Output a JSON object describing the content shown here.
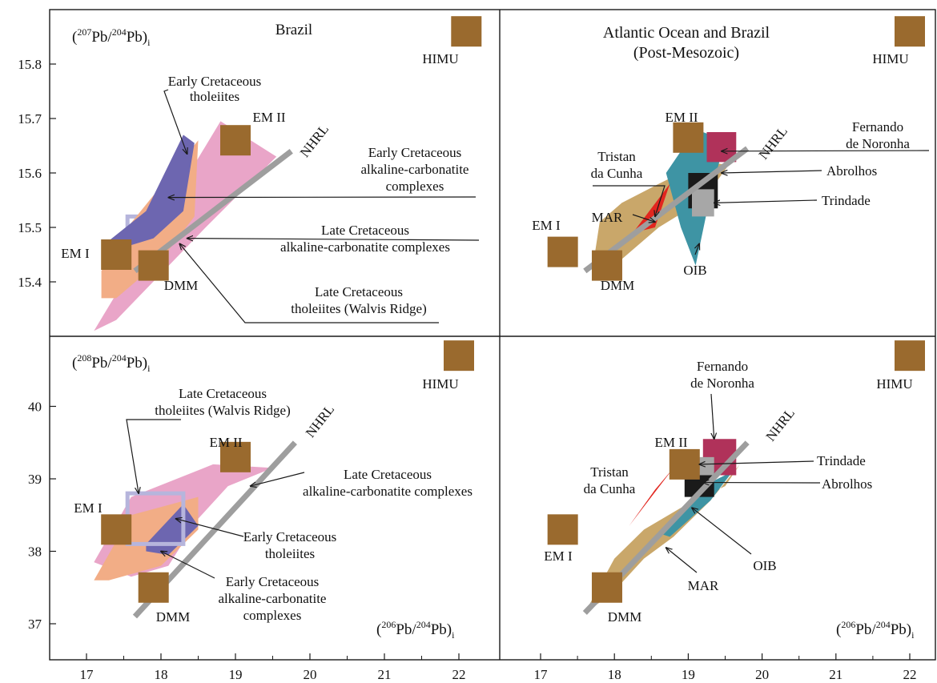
{
  "colors": {
    "frame": "#1a1a1a",
    "tick": "#1a1a1a",
    "nhrl": "#9e9e9e",
    "reservoir": "#9a6a2e",
    "pink": "#e9a5c8",
    "salmon": "#f2ad86",
    "purple": "#6d66b0",
    "lavender": "#b6b5dc",
    "tan": "#c9a76a",
    "teal": "#3e94a4",
    "red": "#e2261f",
    "magenta": "#b0325a",
    "black": "#1a1a1a",
    "gray_box": "#a7a7a7"
  },
  "chart_data": [
    {
      "type": "scatter",
      "panel": "top-left",
      "title": "Brazil",
      "ylabel": "(207Pb/204Pb)i",
      "xlabel": "",
      "xlim": [
        16.6,
        22.8
      ],
      "ylim": [
        15.3,
        15.9
      ],
      "yticks": [
        15.4,
        15.5,
        15.6,
        15.7,
        15.8
      ],
      "reservoirs": [
        {
          "name": "HIMU",
          "x": 22.1,
          "y": 15.86
        },
        {
          "name": "EM II",
          "x": 19.0,
          "y": 15.66
        },
        {
          "name": "EM I",
          "x": 17.4,
          "y": 15.45
        },
        {
          "name": "DMM",
          "x": 17.9,
          "y": 15.43
        }
      ],
      "nhrl": [
        [
          17.65,
          15.42
        ],
        [
          19.75,
          15.64
        ]
      ],
      "fields": [
        {
          "name": "Late Cretaceous tholeiites (Walvis Ridge)",
          "style": "lavender-box",
          "points": [
            [
              17.55,
              15.475
            ],
            [
              18.3,
              15.475
            ],
            [
              18.3,
              15.52
            ],
            [
              17.55,
              15.52
            ]
          ]
        },
        {
          "name": "Late Cretaceous alkaline-carbonatite complexes",
          "style": "pink",
          "points": [
            [
              17.1,
              15.31
            ],
            [
              18.8,
              15.695
            ],
            [
              19.55,
              15.63
            ],
            [
              18.6,
              15.5
            ],
            [
              17.4,
              15.33
            ]
          ]
        },
        {
          "name": "Early Cretaceous alkaline-carbonatite complexes",
          "style": "salmon",
          "points": [
            [
              17.2,
              15.37
            ],
            [
              17.2,
              15.42
            ],
            [
              17.55,
              15.5
            ],
            [
              18.5,
              15.66
            ],
            [
              18.45,
              15.52
            ],
            [
              18.0,
              15.44
            ],
            [
              17.4,
              15.37
            ]
          ]
        },
        {
          "name": "Early Cretaceous tholeiites",
          "style": "purple",
          "points": [
            [
              17.25,
              15.47
            ],
            [
              17.8,
              15.53
            ],
            [
              18.3,
              15.67
            ],
            [
              18.45,
              15.655
            ],
            [
              18.3,
              15.53
            ],
            [
              17.9,
              15.48
            ],
            [
              17.3,
              15.455
            ]
          ]
        }
      ],
      "labels": [
        {
          "name": "Early Cretaceous tholeiites",
          "tip": [
            18.35,
            15.635
          ]
        },
        {
          "name": "Early Cretaceous alkaline-carbonatite complexes",
          "tip": [
            18.1,
            15.555
          ]
        },
        {
          "name": "Late Cretaceous alkaline-carbonatite complexes",
          "tip": [
            18.35,
            15.48
          ]
        },
        {
          "name": "Late Cretaceous tholeiites (Walvis Ridge)",
          "tip": [
            18.25,
            15.47
          ]
        }
      ]
    },
    {
      "type": "scatter",
      "panel": "top-right",
      "title": "Atlantic Ocean and Brazil (Post-Mesozoic)",
      "ylabel": "",
      "xlabel": "",
      "xlim": [
        16.6,
        22.8
      ],
      "ylim": [
        15.3,
        15.9
      ],
      "reservoirs": [
        {
          "name": "HIMU",
          "x": 22.0,
          "y": 15.86
        },
        {
          "name": "EM II",
          "x": 19.0,
          "y": 15.665
        },
        {
          "name": "EM I",
          "x": 17.3,
          "y": 15.455
        },
        {
          "name": "DMM",
          "x": 17.9,
          "y": 15.43
        }
      ],
      "nhrl": [
        [
          17.6,
          15.42
        ],
        [
          19.8,
          15.645
        ]
      ],
      "fields": [
        {
          "name": "MAR",
          "style": "tan",
          "points": [
            [
              17.7,
              15.42
            ],
            [
              17.8,
              15.51
            ],
            [
              18.1,
              15.545
            ],
            [
              18.6,
              15.58
            ],
            [
              19.2,
              15.62
            ],
            [
              19.55,
              15.615
            ],
            [
              19.2,
              15.55
            ],
            [
              18.6,
              15.5
            ],
            [
              18.0,
              15.43
            ]
          ]
        },
        {
          "name": "OIB",
          "style": "teal",
          "points": [
            [
              18.7,
              15.6
            ],
            [
              19.1,
              15.68
            ],
            [
              19.5,
              15.66
            ],
            [
              19.3,
              15.56
            ],
            [
              19.1,
              15.43
            ],
            [
              18.9,
              15.5
            ]
          ]
        },
        {
          "name": "Tristan da Cunha",
          "style": "red",
          "points": [
            [
              18.25,
              15.49
            ],
            [
              18.75,
              15.58
            ],
            [
              18.55,
              15.5
            ]
          ]
        },
        {
          "name": "Fernando de Noronha",
          "style": "magenta",
          "points": [
            [
              19.25,
              15.62
            ],
            [
              19.65,
              15.62
            ],
            [
              19.65,
              15.675
            ],
            [
              19.25,
              15.675
            ]
          ]
        },
        {
          "name": "Abrolhos",
          "style": "black",
          "points": [
            [
              19.0,
              15.535
            ],
            [
              19.4,
              15.535
            ],
            [
              19.4,
              15.6
            ],
            [
              19.0,
              15.6
            ]
          ]
        },
        {
          "name": "Trindade",
          "style": "gray-box",
          "points": [
            [
              19.05,
              15.52
            ],
            [
              19.35,
              15.52
            ],
            [
              19.35,
              15.57
            ],
            [
              19.05,
              15.57
            ]
          ]
        }
      ],
      "labels": [
        {
          "name": "Fernando de Noronha",
          "tip": [
            19.45,
            15.64
          ]
        },
        {
          "name": "Abrolhos",
          "tip": [
            19.45,
            15.6
          ]
        },
        {
          "name": "Trindade",
          "tip": [
            19.35,
            15.545
          ]
        },
        {
          "name": "Tristan da Cunha",
          "tip": [
            18.55,
            15.52
          ]
        },
        {
          "name": "MAR",
          "tip": [
            18.55,
            15.51
          ]
        },
        {
          "name": "OIB",
          "tip": [
            19.15,
            15.47
          ]
        }
      ]
    },
    {
      "type": "scatter",
      "panel": "bottom-left",
      "title": "",
      "ylabel": "(208Pb/204Pb)i",
      "xlabel": "(206Pb/204Pb)i",
      "xlim": [
        16.6,
        22.8
      ],
      "ylim": [
        36.6,
        40.5
      ],
      "xticks": [
        17,
        18,
        19,
        20,
        21,
        22
      ],
      "yticks": [
        37,
        38,
        39,
        40
      ],
      "reservoirs": [
        {
          "name": "HIMU",
          "x": 22.0,
          "y": 40.7
        },
        {
          "name": "EM II",
          "x": 19.0,
          "y": 39.3
        },
        {
          "name": "EM I",
          "x": 17.4,
          "y": 38.3
        },
        {
          "name": "DMM",
          "x": 17.9,
          "y": 37.5
        }
      ],
      "nhrl": [
        [
          17.65,
          37.1
        ],
        [
          19.8,
          39.5
        ]
      ],
      "fields": [
        {
          "name": "Late Cretaceous alkaline-carbonatite complexes",
          "style": "pink",
          "points": [
            [
              17.1,
              37.85
            ],
            [
              17.6,
              38.75
            ],
            [
              18.7,
              39.2
            ],
            [
              19.5,
              39.15
            ],
            [
              18.9,
              38.9
            ],
            [
              18.5,
              38.45
            ],
            [
              18.1,
              37.8
            ],
            [
              17.6,
              37.65
            ]
          ]
        },
        {
          "name": "Early Cretaceous alkaline-carbonatite complexes",
          "style": "salmon",
          "points": [
            [
              17.1,
              37.6
            ],
            [
              17.6,
              38.5
            ],
            [
              18.5,
              38.75
            ],
            [
              18.5,
              38.3
            ],
            [
              18.0,
              37.8
            ],
            [
              17.3,
              37.6
            ]
          ]
        },
        {
          "name": "Early Cretaceous tholeiites",
          "style": "purple",
          "points": [
            [
              17.8,
              38.1
            ],
            [
              18.3,
              38.65
            ],
            [
              18.5,
              38.35
            ],
            [
              18.1,
              37.95
            ],
            [
              17.8,
              38.0
            ]
          ]
        },
        {
          "name": "Late Cretaceous tholeiites (Walvis Ridge)",
          "style": "lavender-box",
          "points": [
            [
              17.55,
              38.1
            ],
            [
              18.3,
              38.1
            ],
            [
              18.3,
              38.8
            ],
            [
              17.55,
              38.8
            ]
          ]
        }
      ],
      "labels": [
        {
          "name": "Late Cretaceous tholeiites (Walvis Ridge)",
          "tip": [
            17.7,
            38.8
          ]
        },
        {
          "name": "Late Cretaceous alkaline-carbonatite complexes",
          "tip": [
            19.2,
            38.9
          ]
        },
        {
          "name": "Early Cretaceous tholeiites",
          "tip": [
            18.2,
            38.45
          ]
        },
        {
          "name": "Early Cretaceous alkaline-carbonatite complexes",
          "tip": [
            18.0,
            38.0
          ]
        }
      ]
    },
    {
      "type": "scatter",
      "panel": "bottom-right",
      "title": "",
      "ylabel": "",
      "xlabel": "(206Pb/204Pb)i",
      "xlim": [
        16.6,
        22.8
      ],
      "ylim": [
        36.6,
        40.5
      ],
      "xticks": [
        17,
        18,
        19,
        20,
        21,
        22
      ],
      "reservoirs": [
        {
          "name": "HIMU",
          "x": 22.0,
          "y": 40.7
        },
        {
          "name": "EM II",
          "x": 18.95,
          "y": 39.2
        },
        {
          "name": "EM I",
          "x": 17.3,
          "y": 38.3
        },
        {
          "name": "DMM",
          "x": 17.9,
          "y": 37.5
        }
      ],
      "nhrl": [
        [
          17.6,
          37.15
        ],
        [
          19.8,
          39.5
        ]
      ],
      "fields": [
        {
          "name": "MAR",
          "style": "tan",
          "points": [
            [
              17.6,
              37.15
            ],
            [
              18.0,
              37.9
            ],
            [
              18.4,
              38.3
            ],
            [
              18.9,
              38.6
            ],
            [
              19.5,
              38.9
            ],
            [
              19.7,
              39.2
            ],
            [
              19.3,
              38.7
            ],
            [
              18.8,
              38.2
            ],
            [
              18.4,
              37.9
            ],
            [
              17.95,
              37.4
            ]
          ]
        },
        {
          "name": "OIB",
          "style": "teal",
          "points": [
            [
              18.6,
              38.25
            ],
            [
              19.2,
              38.9
            ],
            [
              19.6,
              39.1
            ],
            [
              19.3,
              38.7
            ],
            [
              18.75,
              38.2
            ]
          ]
        },
        {
          "name": "Tristan da Cunha",
          "style": "red",
          "points": [
            [
              18.2,
              38.35
            ],
            [
              18.8,
              39.15
            ],
            [
              18.55,
              38.85
            ]
          ]
        },
        {
          "name": "Fernando de Noronha",
          "style": "magenta",
          "points": [
            [
              19.2,
              39.05
            ],
            [
              19.65,
              39.05
            ],
            [
              19.65,
              39.55
            ],
            [
              19.2,
              39.55
            ]
          ]
        },
        {
          "name": "Abrolhos",
          "style": "black",
          "points": [
            [
              18.95,
              38.75
            ],
            [
              19.35,
              38.75
            ],
            [
              19.35,
              39.1
            ],
            [
              18.95,
              39.1
            ]
          ]
        },
        {
          "name": "Trindade",
          "style": "gray-box",
          "points": [
            [
              19.0,
              39.05
            ],
            [
              19.35,
              39.05
            ],
            [
              19.35,
              39.3
            ],
            [
              19.0,
              39.3
            ]
          ]
        }
      ],
      "labels": [
        {
          "name": "Fernando de Noronha",
          "tip": [
            19.35,
            39.55
          ]
        },
        {
          "name": "Trindade",
          "tip": [
            19.15,
            39.2
          ]
        },
        {
          "name": "Abrolhos",
          "tip": [
            19.2,
            38.95
          ]
        },
        {
          "name": "OIB",
          "tip": [
            19.05,
            38.6
          ]
        },
        {
          "name": "MAR",
          "tip": [
            18.7,
            38.05
          ]
        }
      ]
    }
  ],
  "text": {
    "tl_title": "Brazil",
    "tr_title_line1": "Atlantic Ocean and Brazil",
    "tr_title_line2": "(Post-Mesozoic)",
    "y_top_pre": "(",
    "y_top_sup1": "207",
    "y_top_mid": "Pb/",
    "y_top_sup2": "204",
    "y_top_post": "Pb)",
    "y_top_sub": "i",
    "y_bot_sup1": "208",
    "x_sup1": "206",
    "nhrl": "NHRL",
    "himu": "HIMU",
    "em2": "EM II",
    "em1": "EM I",
    "dmm": "DMM",
    "mar": "MAR",
    "oib": "OIB",
    "tl_ect_1": "Early Cretaceous",
    "tl_ect_2": "tholeiites",
    "tl_ecac_1": "Early Cretaceous",
    "tl_ecac_2": "alkaline-carbonatite",
    "tl_ecac_3": "complexes",
    "tl_lcac_1": "Late Cretaceous",
    "tl_lcac_2": "alkaline-carbonatite complexes",
    "tl_lct_1": "Late Cretaceous",
    "tl_lct_2": "tholeiites (Walvis Ridge)",
    "tr_fn_1": "Fernando",
    "tr_fn_2": "de Noronha",
    "tr_abrolhos": "Abrolhos",
    "tr_trindade": "Trindade",
    "tr_tc_1": "Tristan",
    "tr_tc_2": "da Cunha",
    "bl_lct_1": "Late Cretaceous",
    "bl_lct_2": "tholeiites (Walvis Ridge)",
    "bl_lcac_1": "Late Cretaceous",
    "bl_lcac_2": "alkaline-carbonatite complexes",
    "bl_ect_1": "Early Cretaceous",
    "bl_ect_2": "tholeiites",
    "bl_ecac_1": "Early Cretaceous",
    "bl_ecac_2": "alkaline-carbonatite",
    "bl_ecac_3": "complexes",
    "br_fn_1": "Fernando",
    "br_fn_2": "de Noronha",
    "br_trindade": "Trindade",
    "br_abrolhos": "Abrolhos",
    "br_tc_1": "Tristan",
    "br_tc_2": "da Cunha",
    "ytick_top": [
      "15.4",
      "15.5",
      "15.6",
      "15.7",
      "15.8"
    ],
    "ytick_bot": [
      "37",
      "38",
      "39",
      "40"
    ],
    "xtick": [
      "17",
      "18",
      "19",
      "20",
      "21",
      "22"
    ]
  }
}
